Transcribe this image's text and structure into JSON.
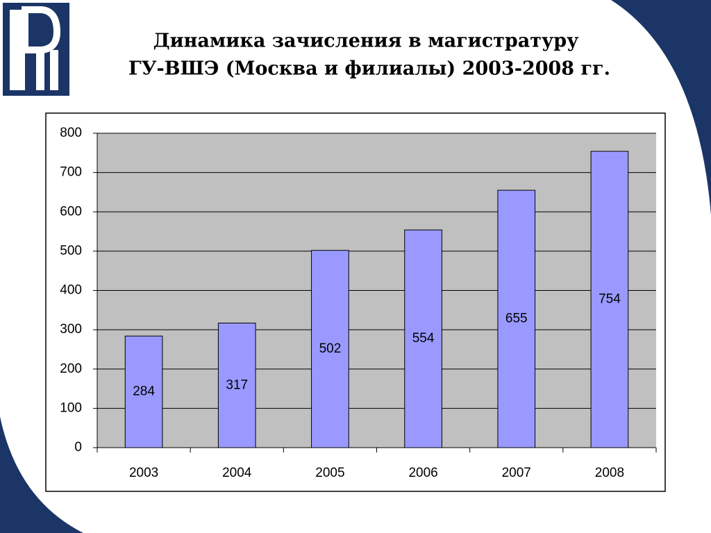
{
  "chart_data": {
    "type": "bar",
    "title": [
      "Динамика зачисления в магистратуру",
      "ГУ-ВШЭ (Москва и филиалы) 2003-2008 гг."
    ],
    "categories": [
      "2003",
      "2004",
      "2005",
      "2006",
      "2007",
      "2008"
    ],
    "values": [
      284,
      317,
      502,
      554,
      655,
      754
    ],
    "color": "#9999ff",
    "ylim": [
      0,
      800
    ],
    "yticks": [
      0,
      100,
      200,
      300,
      400,
      500,
      600,
      700,
      800
    ],
    "grid": true,
    "data_labels": true
  }
}
